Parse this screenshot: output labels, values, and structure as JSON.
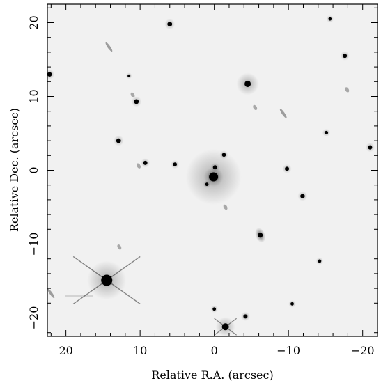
{
  "figure": {
    "xlabel": "Relative R.A. (arcsec)",
    "ylabel": "Relative Dec. (arcsec)",
    "x_ticks": [
      {
        "value": 20,
        "label": "20"
      },
      {
        "value": 10,
        "label": "10"
      },
      {
        "value": 0,
        "label": "0"
      },
      {
        "value": -10,
        "label": "−10"
      },
      {
        "value": -20,
        "label": "−20"
      }
    ],
    "y_ticks": [
      {
        "value": 20,
        "label": "20"
      },
      {
        "value": 10,
        "label": "10"
      },
      {
        "value": 0,
        "label": "0"
      },
      {
        "value": -10,
        "label": "−10"
      },
      {
        "value": -20,
        "label": "−20"
      }
    ],
    "xlim": [
      22.5,
      -22.0
    ],
    "ylim": [
      -22.5,
      22.5
    ],
    "colors": {
      "background": "#f1f1f1",
      "sources": "#000000",
      "frame": "#000000"
    }
  },
  "sources": [
    {
      "ra": 0.1,
      "dec": -0.9,
      "kind": "galaxy-bright",
      "mag": 1.0
    },
    {
      "ra": -0.1,
      "dec": 0.4,
      "kind": "star",
      "mag": 0.45
    },
    {
      "ra": 1.0,
      "dec": -1.9,
      "kind": "star",
      "mag": 0.3
    },
    {
      "ra": -1.3,
      "dec": 2.1,
      "kind": "star",
      "mag": 0.4
    },
    {
      "ra": -4.5,
      "dec": 11.7,
      "kind": "galaxy",
      "mag": 0.7
    },
    {
      "ra": -6.2,
      "dec": -8.8,
      "kind": "galaxy-elongated",
      "mag": 0.55
    },
    {
      "ra": 14.5,
      "dec": -14.9,
      "kind": "bright-star-spikes",
      "mag": 1.0
    },
    {
      "ra": -1.5,
      "dec": -21.2,
      "kind": "bright-star-spikes-small",
      "mag": 0.75
    },
    {
      "ra": 6.0,
      "dec": 19.8,
      "kind": "star",
      "mag": 0.55
    },
    {
      "ra": 10.5,
      "dec": 9.3,
      "kind": "star",
      "mag": 0.55
    },
    {
      "ra": 12.9,
      "dec": 4.0,
      "kind": "star",
      "mag": 0.55
    },
    {
      "ra": 9.3,
      "dec": 1.0,
      "kind": "star",
      "mag": 0.45
    },
    {
      "ra": 5.3,
      "dec": 0.8,
      "kind": "star",
      "mag": 0.4
    },
    {
      "ra": -9.8,
      "dec": 0.2,
      "kind": "star",
      "mag": 0.45
    },
    {
      "ra": -11.9,
      "dec": -3.5,
      "kind": "star",
      "mag": 0.5
    },
    {
      "ra": -15.1,
      "dec": 5.1,
      "kind": "star",
      "mag": 0.35
    },
    {
      "ra": -17.6,
      "dec": 15.5,
      "kind": "star",
      "mag": 0.45
    },
    {
      "ra": -15.6,
      "dec": 20.5,
      "kind": "star",
      "mag": 0.3
    },
    {
      "ra": -21.0,
      "dec": 3.1,
      "kind": "star",
      "mag": 0.45
    },
    {
      "ra": 22.2,
      "dec": 13.0,
      "kind": "star",
      "mag": 0.5
    },
    {
      "ra": -4.2,
      "dec": -19.8,
      "kind": "star",
      "mag": 0.45
    },
    {
      "ra": 0.0,
      "dec": -18.8,
      "kind": "star",
      "mag": 0.3
    },
    {
      "ra": -14.2,
      "dec": -12.3,
      "kind": "star",
      "mag": 0.3
    },
    {
      "ra": 11.5,
      "dec": 12.8,
      "kind": "star",
      "mag": 0.2
    },
    {
      "ra": -10.5,
      "dec": -18.1,
      "kind": "star",
      "mag": 0.3
    },
    {
      "ra": -5.5,
      "dec": 8.5,
      "kind": "faint-galaxy",
      "mag": 0.3
    },
    {
      "ra": -9.3,
      "dec": 7.7,
      "kind": "faint-elongated",
      "mag": 0.35
    },
    {
      "ra": 14.2,
      "dec": 16.7,
      "kind": "faint-elongated",
      "mag": 0.3
    },
    {
      "ra": 10.2,
      "dec": 0.6,
      "kind": "faint-galaxy",
      "mag": 0.3
    },
    {
      "ra": -17.9,
      "dec": 10.9,
      "kind": "faint-galaxy",
      "mag": 0.25
    },
    {
      "ra": 12.8,
      "dec": -10.4,
      "kind": "faint-galaxy",
      "mag": 0.25
    },
    {
      "ra": -1.5,
      "dec": -5.0,
      "kind": "faint-galaxy",
      "mag": 0.2
    },
    {
      "ra": 22.0,
      "dec": -16.7,
      "kind": "faint-elongated",
      "mag": 0.2
    },
    {
      "ra": 11.0,
      "dec": 10.2,
      "kind": "faint-galaxy",
      "mag": 0.15
    }
  ]
}
